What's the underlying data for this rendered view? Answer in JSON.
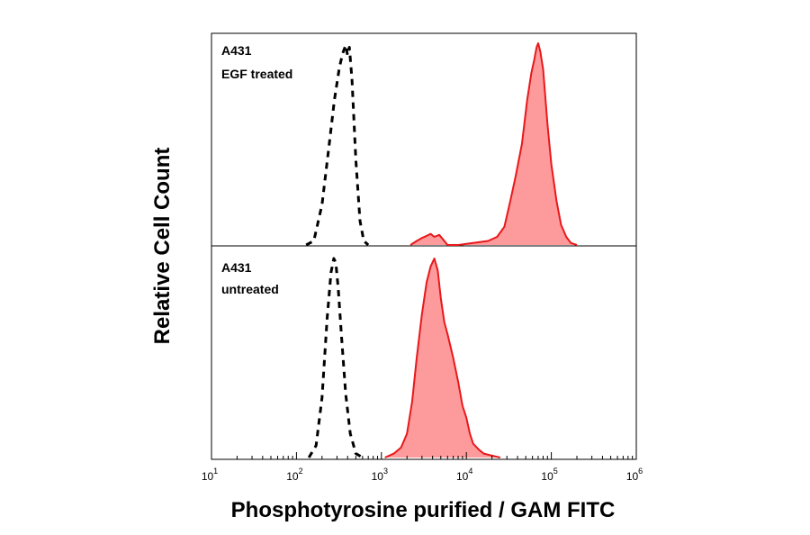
{
  "chart_data": {
    "type": "area",
    "xlabel": "Phosphotyrosine purified / GAM FITC",
    "ylabel": "Relative Cell Count",
    "xscale": "log",
    "xlim": [
      10,
      1000000
    ],
    "x_ticks": [
      {
        "base": "10",
        "exp": "1"
      },
      {
        "base": "10",
        "exp": "2"
      },
      {
        "base": "10",
        "exp": "3"
      },
      {
        "base": "10",
        "exp": "4"
      },
      {
        "base": "10",
        "exp": "5"
      },
      {
        "base": "10",
        "exp": "6"
      }
    ],
    "grid": false,
    "colors": {
      "stained": "#e8181b",
      "stained_fill": "#fd9a9b",
      "control": "#000000"
    },
    "panels": [
      {
        "label_line1": "A431",
        "label_line2": "EGF treated",
        "series": [
          {
            "style": "dashed",
            "x": [
              130,
              160,
              200,
              240,
              280,
              320,
              350,
              380,
              400,
              420,
              450,
              500,
              560,
              620,
              700
            ],
            "y": [
              0,
              0.02,
              0.2,
              0.48,
              0.72,
              0.88,
              0.95,
              0.99,
              0.94,
              0.98,
              0.82,
              0.42,
              0.12,
              0.02,
              0
            ]
          },
          {
            "style": "filled",
            "x": [
              2200,
              2600,
              3000,
              3400,
              3800,
              4200,
              4800,
              5500,
              6000,
              8000,
              12000,
              18000,
              23000,
              28000,
              33000,
              38000,
              45000,
              52000,
              58000,
              63000,
              67000,
              70000,
              74000,
              80000,
              90000,
              100000,
              115000,
              130000,
              150000,
              170000,
              200000
            ],
            "y": [
              0,
              0.02,
              0.035,
              0.045,
              0.055,
              0.04,
              0.05,
              0.02,
              0,
              0,
              0.01,
              0.02,
              0.04,
              0.09,
              0.22,
              0.34,
              0.5,
              0.72,
              0.85,
              0.92,
              0.98,
              1.0,
              0.96,
              0.87,
              0.6,
              0.4,
              0.22,
              0.1,
              0.04,
              0.01,
              0
            ]
          }
        ]
      },
      {
        "label_line1": "A431",
        "label_line2": "untreated",
        "series": [
          {
            "style": "dashed",
            "x": [
              140,
              170,
              200,
              230,
              255,
              275,
              290,
              310,
              340,
              380,
              430,
              500,
              600
            ],
            "y": [
              0,
              0.06,
              0.3,
              0.7,
              0.93,
              1.0,
              0.98,
              0.85,
              0.6,
              0.32,
              0.12,
              0.02,
              0
            ]
          },
          {
            "style": "filled",
            "x": [
              1100,
              1400,
              1700,
              2000,
              2300,
              2600,
              3000,
              3400,
              3800,
              4200,
              4600,
              5000,
              5500,
              6000,
              7000,
              8000,
              9000,
              10000,
              11000,
              12000,
              14000,
              16000,
              20000,
              25000
            ],
            "y": [
              0,
              0.02,
              0.05,
              0.12,
              0.28,
              0.5,
              0.72,
              0.88,
              0.96,
              1.0,
              0.94,
              0.8,
              0.68,
              0.62,
              0.5,
              0.38,
              0.26,
              0.2,
              0.12,
              0.07,
              0.04,
              0.02,
              0.01,
              0
            ]
          }
        ]
      }
    ]
  }
}
